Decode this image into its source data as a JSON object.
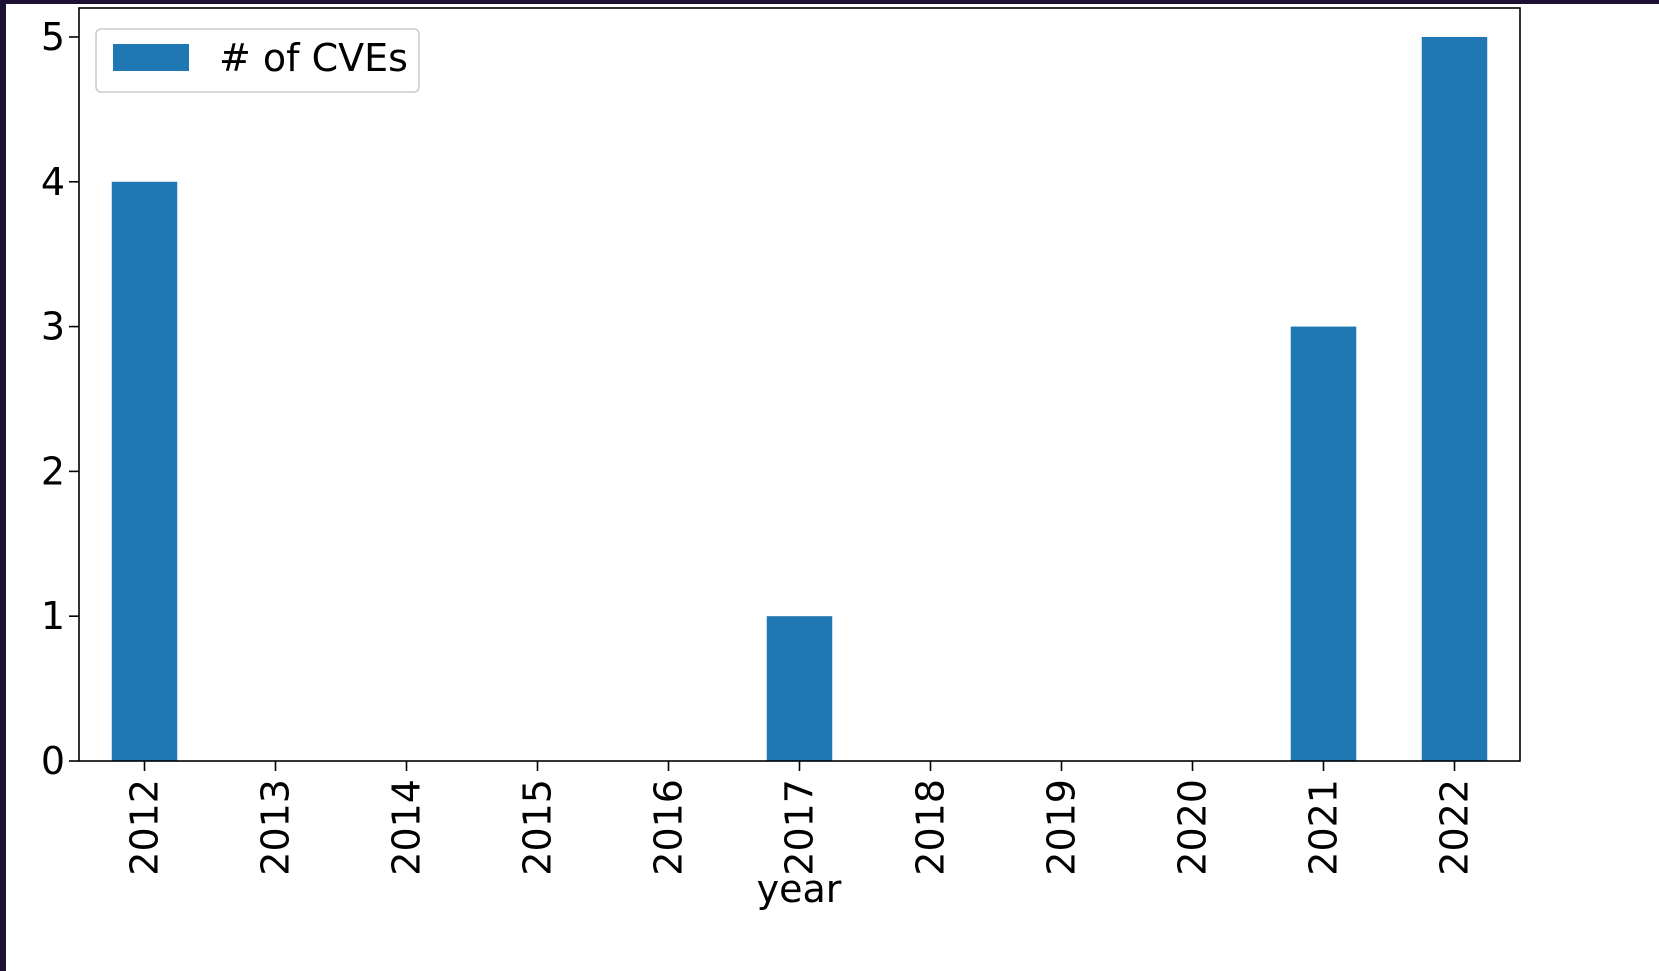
{
  "chart_data": {
    "type": "bar",
    "categories": [
      "2012",
      "2013",
      "2014",
      "2015",
      "2016",
      "2017",
      "2018",
      "2019",
      "2020",
      "2021",
      "2022"
    ],
    "series": [
      {
        "name": "# of CVEs",
        "values": [
          4,
          0,
          0,
          0,
          0,
          1,
          0,
          0,
          0,
          3,
          5
        ],
        "color": "#1f77b4"
      }
    ],
    "xlabel": "year",
    "ylabel": "",
    "ylim": [
      0,
      5.2
    ],
    "yticks": [
      "0",
      "1",
      "2",
      "3",
      "4",
      "5"
    ],
    "grid": false,
    "legend_position": "top-left"
  }
}
